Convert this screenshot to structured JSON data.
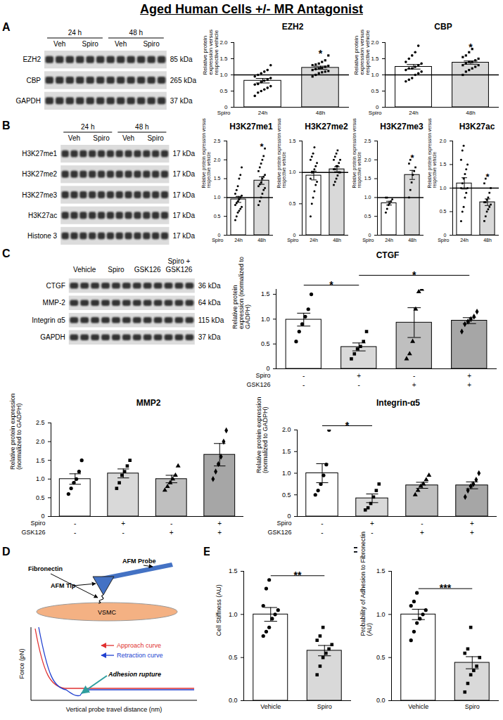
{
  "title": "Aged Human Cells +/- MR Antagonist",
  "panel_labels": [
    "A",
    "B",
    "C",
    "D",
    "E",
    "F"
  ],
  "blots": [
    {
      "header": [
        {
          "label": "24 h",
          "lanes": [
            "Veh",
            "Spiro"
          ]
        },
        {
          "label": "48 h",
          "lanes": [
            "Veh",
            "Spiro"
          ]
        }
      ],
      "rows": [
        {
          "name": "EZH2",
          "size": "85 kDa"
        },
        {
          "name": "CBP",
          "size": "265 kDa"
        },
        {
          "name": "GAPDH",
          "size": "37 kDa"
        }
      ]
    },
    {
      "header": [
        {
          "label": "24 h",
          "lanes": [
            "Veh",
            "Spiro"
          ]
        },
        {
          "label": "48 h",
          "lanes": [
            "Veh",
            "Spiro"
          ]
        }
      ],
      "rows": [
        {
          "name": "H3K27me1",
          "size": "17 kDa"
        },
        {
          "name": "H3K27me2",
          "size": "17 kDa"
        },
        {
          "name": "H3K27me3",
          "size": "17 kDa"
        },
        {
          "name": "H3K27ac",
          "size": "17 kDa"
        },
        {
          "name": "Histone 3",
          "size": "17 kDa"
        }
      ]
    },
    {
      "lanes": [
        "Vehicle",
        "Spiro",
        "GSK126",
        "Spiro + GSK126"
      ],
      "rows": [
        {
          "name": "CTGF",
          "size": "36 kDa"
        },
        {
          "name": "MMP-2",
          "size": "64 kDa"
        },
        {
          "name": "Integrin α5",
          "size": "115 kDa"
        },
        {
          "name": "GAPDH",
          "size": "37 kDa"
        }
      ]
    }
  ],
  "diagram": {
    "probe": "AFM Probe",
    "fibronectin": "Fibronectin",
    "tip": "AFM Tip",
    "cell": "VSMC",
    "legend": [
      {
        "text": "Approach curve",
        "color": "#e03030"
      },
      {
        "text": "Retraction curve",
        "color": "#2040d0"
      }
    ],
    "annotation": "Adhesion rupture",
    "y_label": "Force (pN)",
    "x_label": "Vertical probe travel distance (nm)"
  },
  "chart_data": [
    {
      "type": "bar",
      "title": "EZH2",
      "y_label": "Relative protein expression versus respective vehicle",
      "x_label": "Spiro",
      "categories": [
        "24h",
        "48h"
      ],
      "ylim": [
        0,
        2
      ],
      "yticks": [
        0,
        0.5,
        {
          "value": 1,
          "label": "1.0"
        },
        1.5,
        {
          "value": 2,
          "label": "2.0"
        }
      ],
      "hline": 1,
      "groups": [
        {
          "value": 0.82,
          "error": 0.07,
          "color": "#ffffff",
          "marker": "circle",
          "points": [
            0.35,
            0.45,
            0.5,
            0.55,
            0.6,
            0.65,
            0.7,
            0.72,
            0.78,
            0.82,
            0.85,
            0.9,
            0.95,
            1.0,
            1.05,
            1.1,
            1.15,
            1.3
          ]
        },
        {
          "value": 1.22,
          "error": 0.05,
          "color": "#d9d9d9",
          "marker": "square",
          "points": [
            0.95,
            1.0,
            1.05,
            1.08,
            1.1,
            1.12,
            1.15,
            1.18,
            1.2,
            1.22,
            1.25,
            1.28,
            1.3,
            1.32,
            1.35,
            1.4,
            1.45,
            1.6
          ]
        }
      ],
      "annotations": [
        {
          "text": "*",
          "at": 1
        }
      ]
    },
    {
      "type": "bar",
      "title": "CBP",
      "y_label": "Relative protein expression versus respective vehicle",
      "x_label": "Spiro",
      "categories": [
        "24h",
        "48h"
      ],
      "ylim": [
        0,
        2
      ],
      "yticks": [
        0,
        0.5,
        {
          "value": 1,
          "label": "1.0"
        },
        1.5,
        {
          "value": 2,
          "label": "2.0"
        }
      ],
      "hline": 1,
      "groups": [
        {
          "value": 1.25,
          "error": 0.07,
          "color": "#ffffff",
          "marker": "circle",
          "points": [
            0.8,
            0.85,
            0.9,
            1.0,
            1.05,
            1.1,
            1.15,
            1.2,
            1.2,
            1.25,
            1.3,
            1.35,
            1.4,
            1.5,
            1.6,
            1.7,
            1.9
          ]
        },
        {
          "value": 1.38,
          "error": 0.05,
          "color": "#d9d9d9",
          "marker": "square",
          "points": [
            1.0,
            1.1,
            1.15,
            1.2,
            1.25,
            1.3,
            1.3,
            1.35,
            1.4,
            1.4,
            1.45,
            1.5,
            1.55,
            1.6,
            1.7,
            1.8
          ]
        }
      ],
      "annotations": [
        {
          "text": "*",
          "at": 1
        }
      ]
    },
    {
      "type": "bar",
      "title": "H3K27me1",
      "y_label": "Relative protein expression versus respective vehicle",
      "x_label": "Spiro",
      "categories": [
        "24h",
        "48h"
      ],
      "ylim": [
        0,
        2.5
      ],
      "yticks": [
        0,
        0.5,
        {
          "value": 1,
          "label": "1.0"
        },
        1.5,
        {
          "value": 2,
          "label": "2.0"
        },
        2.5
      ],
      "hline": 1,
      "groups": [
        {
          "value": 0.95,
          "error": 0.08,
          "color": "#ffffff",
          "marker": "circle",
          "points": [
            0.4,
            0.5,
            0.6,
            0.65,
            0.7,
            0.75,
            0.8,
            0.85,
            0.9,
            0.95,
            1.0,
            1.05,
            1.1,
            1.2,
            1.3,
            1.5,
            1.6,
            1.8
          ]
        },
        {
          "value": 1.45,
          "error": 0.1,
          "color": "#d9d9d9",
          "marker": "square",
          "points": [
            0.8,
            0.9,
            1.0,
            1.1,
            1.2,
            1.25,
            1.3,
            1.35,
            1.4,
            1.5,
            1.55,
            1.6,
            1.7,
            1.8,
            1.9,
            2.0,
            2.1,
            2.3
          ]
        }
      ],
      "annotations": [
        {
          "text": "*",
          "at": 1
        }
      ]
    },
    {
      "type": "bar",
      "title": "H3K27me2",
      "y_label": "Relative protein expression versus respective vehicle",
      "x_label": "Spiro",
      "categories": [
        "24h",
        "48h"
      ],
      "ylim": [
        0,
        1.5
      ],
      "yticks": [
        0,
        0.5,
        {
          "value": 1,
          "label": "1.0"
        },
        1.5
      ],
      "hline": 1,
      "groups": [
        {
          "value": 0.95,
          "error": 0.07,
          "color": "#ffffff",
          "marker": "circle",
          "points": [
            0.3,
            0.5,
            0.6,
            0.7,
            0.8,
            0.85,
            0.9,
            1.0,
            1.0,
            1.05,
            1.1,
            1.15,
            1.2,
            1.25,
            1.3,
            1.4
          ]
        },
        {
          "value": 1.05,
          "error": 0.04,
          "color": "#d9d9d9",
          "marker": "square",
          "points": [
            0.8,
            0.85,
            0.9,
            0.95,
            1.0,
            1.0,
            1.05,
            1.05,
            1.1,
            1.1,
            1.15,
            1.2,
            1.2,
            1.25,
            1.3,
            1.35
          ]
        }
      ]
    },
    {
      "type": "bar",
      "title": "H3K27me3",
      "y_label": "Relative protein expression versus respective vehicle",
      "x_label": "Spiro",
      "categories": [
        "24h",
        "48h"
      ],
      "ylim": [
        0,
        2.5
      ],
      "yticks": [
        0,
        0.5,
        {
          "value": 1,
          "label": "1.0"
        },
        1.5,
        {
          "value": 2,
          "label": "2.0"
        },
        2.5
      ],
      "hline": 1,
      "groups": [
        {
          "value": 0.85,
          "error": 0.05,
          "color": "#ffffff",
          "marker": "circle",
          "points": [
            0.6,
            0.7,
            0.8,
            0.85,
            0.9,
            0.95,
            1.0,
            1.0
          ]
        },
        {
          "value": 1.6,
          "error": 0.12,
          "color": "#d9d9d9",
          "marker": "square",
          "points": [
            1.0,
            1.2,
            1.4,
            1.6,
            1.7,
            1.8,
            1.9,
            2.0
          ]
        }
      ],
      "annotations": [
        {
          "text": "*",
          "at": 1
        }
      ]
    },
    {
      "type": "bar",
      "title": "H3K27ac",
      "y_label": "Relative protein expression versus respective vehicle",
      "x_label": "Spiro",
      "categories": [
        "24h",
        "48h"
      ],
      "ylim": [
        0,
        2
      ],
      "yticks": [
        0,
        0.5,
        {
          "value": 1,
          "label": "1.0"
        },
        1.5,
        {
          "value": 2,
          "label": "2.0"
        }
      ],
      "hline": 1,
      "groups": [
        {
          "value": 1.1,
          "error": 0.12,
          "color": "#ffffff",
          "marker": "circle",
          "points": [
            0.3,
            0.5,
            0.6,
            0.8,
            0.9,
            1.0,
            1.0,
            1.1,
            1.2,
            1.3,
            1.4,
            1.5,
            1.6,
            1.8,
            1.9
          ]
        },
        {
          "value": 0.7,
          "error": 0.07,
          "color": "#d9d9d9",
          "marker": "square",
          "points": [
            0.3,
            0.4,
            0.5,
            0.55,
            0.6,
            0.65,
            0.7,
            0.7,
            0.75,
            0.8,
            0.9,
            1.0,
            1.1,
            1.2
          ]
        }
      ],
      "annotations": [
        {
          "text": "*",
          "at": 1
        }
      ]
    },
    {
      "type": "bar",
      "title": "CTGF",
      "y_label": "Relative protein expression (normalized to GADPH)",
      "categories": [
        null,
        null,
        null,
        null
      ],
      "x_rows": [
        {
          "name": "Spiro",
          "labels": [
            "-",
            "+",
            "-",
            "+"
          ]
        },
        {
          "name": "GSK126",
          "labels": [
            "-",
            "-",
            "+",
            "+"
          ]
        }
      ],
      "ylim": [
        0,
        1.6
      ],
      "yticks": [
        0,
        0.5,
        {
          "value": 1,
          "label": "1.0"
        },
        1.5
      ],
      "groups": [
        {
          "value": 0.99,
          "error": 0.13,
          "color": "#ffffff",
          "marker": "circle",
          "points": [
            0.55,
            0.75,
            0.9,
            1.05,
            1.2,
            1.5
          ]
        },
        {
          "value": 0.44,
          "error": 0.08,
          "color": "#d9d9d9",
          "marker": "square",
          "points": [
            0.2,
            0.3,
            0.4,
            0.45,
            0.55,
            0.75
          ]
        },
        {
          "value": 0.93,
          "error": 0.3,
          "color": "#bfbfbf",
          "marker": "triangle",
          "points": [
            0.2,
            0.3,
            0.55,
            1.2,
            1.55,
            1.6
          ]
        },
        {
          "value": 0.97,
          "error": 0.06,
          "color": "#a6a6a6",
          "marker": "diamond",
          "points": [
            0.75,
            0.9,
            0.95,
            1.0,
            1.05,
            1.15
          ]
        }
      ],
      "brackets": [
        {
          "text": "*",
          "from": 0,
          "to": 1
        },
        {
          "text": "*",
          "from": 1,
          "to": 3
        }
      ]
    },
    {
      "type": "bar",
      "title": "MMP2",
      "y_label": "Relative protein expression (normalized to GADPH)",
      "categories": [
        null,
        null,
        null,
        null
      ],
      "x_rows": [
        {
          "name": "Spiro",
          "labels": [
            "-",
            "+",
            "-",
            "+"
          ]
        },
        {
          "name": "GSK126",
          "labels": [
            "-",
            "-",
            "+",
            "+"
          ]
        }
      ],
      "ylim": [
        0,
        2.5
      ],
      "yticks": [
        0,
        0.5,
        {
          "value": 1,
          "label": "1.0"
        },
        1.5,
        {
          "value": 2,
          "label": "2.0"
        },
        2.5
      ],
      "groups": [
        {
          "value": 1.0,
          "error": 0.14,
          "color": "#ffffff",
          "marker": "circle",
          "points": [
            0.6,
            0.75,
            0.9,
            1.0,
            1.2,
            1.5
          ]
        },
        {
          "value": 1.15,
          "error": 0.12,
          "color": "#d9d9d9",
          "marker": "square",
          "points": [
            0.75,
            0.9,
            1.1,
            1.2,
            1.35,
            1.5
          ]
        },
        {
          "value": 1.0,
          "error": 0.1,
          "color": "#bfbfbf",
          "marker": "triangle",
          "points": [
            0.7,
            0.8,
            0.9,
            1.0,
            1.1,
            1.35
          ]
        },
        {
          "value": 1.65,
          "error": 0.3,
          "color": "#a6a6a6",
          "marker": "diamond",
          "points": [
            1.0,
            1.2,
            1.4,
            1.6,
            2.0,
            2.3
          ]
        }
      ]
    },
    {
      "type": "bar",
      "title": "Integrin-α5",
      "y_label": "Relative protein expression (normalized to GADPH)",
      "categories": [
        null,
        null,
        null,
        null
      ],
      "x_rows": [
        {
          "name": "Spiro",
          "labels": [
            "-",
            "+",
            "-",
            "+"
          ]
        },
        {
          "name": "GSK126",
          "labels": [
            "-",
            "-",
            "+",
            "+"
          ]
        }
      ],
      "ylim": [
        0,
        2
      ],
      "yticks": [
        0,
        0.5,
        {
          "value": 1,
          "label": "1.0"
        },
        1.5,
        {
          "value": 2,
          "label": "2.0"
        }
      ],
      "groups": [
        {
          "value": 1.0,
          "error": 0.22,
          "color": "#ffffff",
          "marker": "circle",
          "points": [
            0.5,
            0.6,
            0.75,
            0.95,
            1.2,
            2.0
          ]
        },
        {
          "value": 0.42,
          "error": 0.1,
          "color": "#d9d9d9",
          "marker": "square",
          "points": [
            0.15,
            0.2,
            0.3,
            0.45,
            0.6,
            0.75
          ]
        },
        {
          "value": 0.72,
          "error": 0.07,
          "color": "#bfbfbf",
          "marker": "triangle",
          "points": [
            0.5,
            0.6,
            0.7,
            0.75,
            0.85,
            0.95
          ]
        },
        {
          "value": 0.72,
          "error": 0.08,
          "color": "#a6a6a6",
          "marker": "diamond",
          "points": [
            0.45,
            0.6,
            0.7,
            0.75,
            0.85,
            1.0
          ]
        }
      ],
      "brackets": [
        {
          "text": "*",
          "from": 0,
          "to": 1
        }
      ]
    },
    {
      "type": "bar",
      "y_label": "Cell Stiffness (AU)",
      "categories": [
        "Vehicle",
        "Spiro"
      ],
      "ylim": [
        0,
        1.5
      ],
      "yticks": [
        {
          "value": 0,
          "label": "0.0"
        },
        0.5,
        {
          "value": 1,
          "label": "1.0"
        },
        1.5
      ],
      "groups": [
        {
          "value": 1.0,
          "error": 0.08,
          "color": "#ffffff",
          "marker": "circle",
          "points": [
            0.75,
            0.8,
            0.85,
            0.95,
            1.0,
            1.05,
            1.1,
            1.3,
            1.4
          ]
        },
        {
          "value": 0.58,
          "error": 0.06,
          "color": "#d9d9d9",
          "marker": "square",
          "points": [
            0.3,
            0.4,
            0.5,
            0.55,
            0.6,
            0.65,
            0.7,
            0.75,
            0.85
          ]
        }
      ],
      "brackets": [
        {
          "text": "**",
          "from": 0,
          "to": 1
        }
      ]
    },
    {
      "type": "bar",
      "y_label": "Probability of Adhesion to Fibronectin (AU)",
      "categories": [
        "Vehicle",
        "Spiro"
      ],
      "ylim": [
        0,
        1.5
      ],
      "yticks": [
        {
          "value": 0,
          "label": "0.0"
        },
        0.5,
        {
          "value": 1,
          "label": "1.0"
        },
        1.5
      ],
      "groups": [
        {
          "value": 1.0,
          "error": 0.06,
          "color": "#ffffff",
          "marker": "circle",
          "points": [
            0.7,
            0.8,
            0.9,
            0.95,
            1.0,
            1.05,
            1.1,
            1.15,
            1.25
          ]
        },
        {
          "value": 0.44,
          "error": 0.07,
          "color": "#d9d9d9",
          "marker": "square",
          "points": [
            0.1,
            0.2,
            0.3,
            0.35,
            0.4,
            0.5,
            0.55,
            0.6,
            0.85
          ]
        }
      ],
      "brackets": [
        {
          "text": "***",
          "from": 0,
          "to": 1
        }
      ]
    }
  ]
}
